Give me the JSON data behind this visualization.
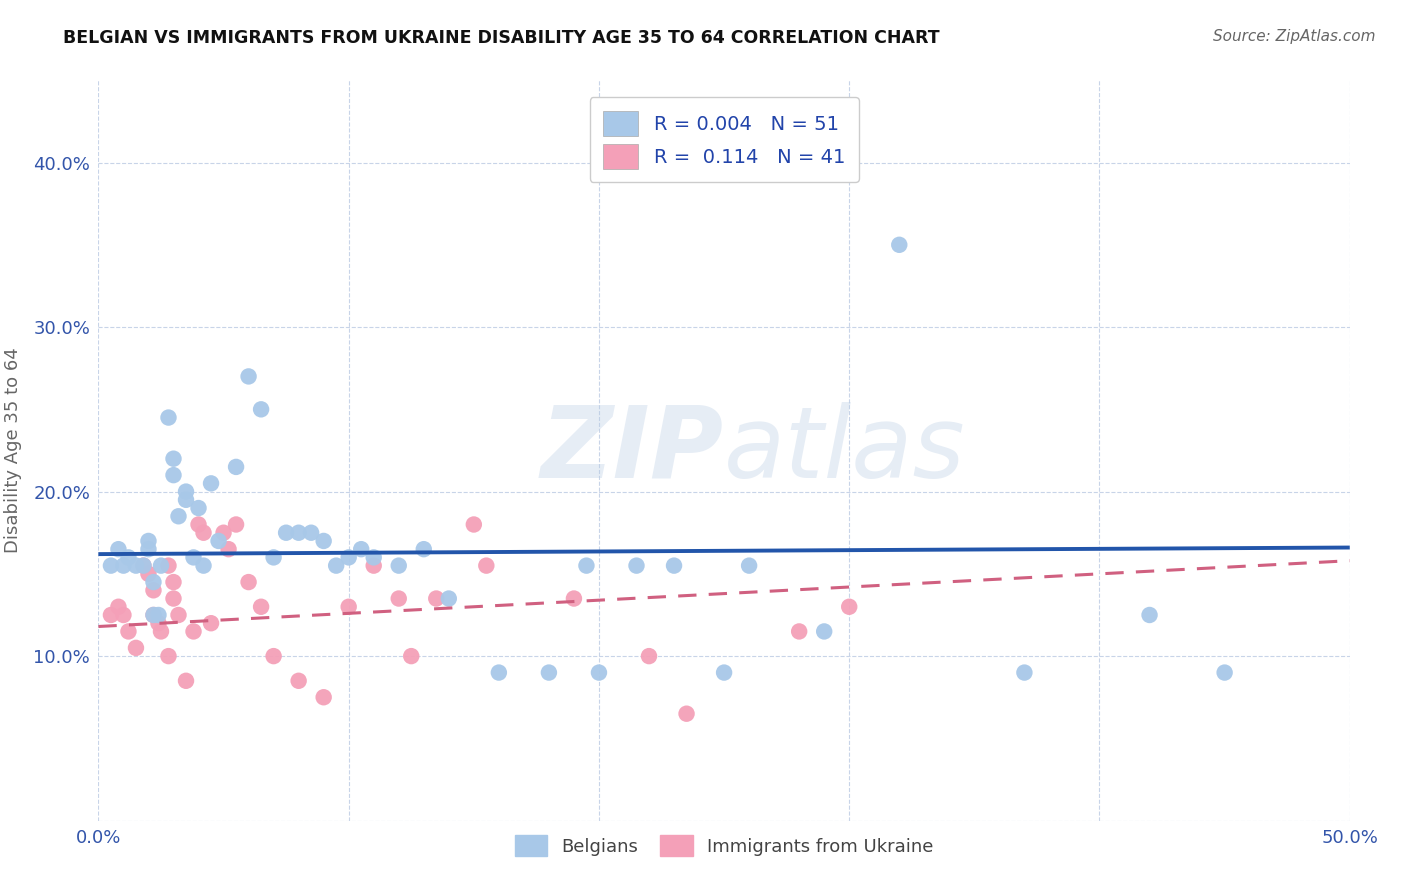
{
  "title": "BELGIAN VS IMMIGRANTS FROM UKRAINE DISABILITY AGE 35 TO 64 CORRELATION CHART",
  "source": "Source: ZipAtlas.com",
  "ylabel": "Disability Age 35 to 64",
  "xlim": [
    0.0,
    0.5
  ],
  "ylim": [
    0.0,
    0.45
  ],
  "watermark_part1": "ZIP",
  "watermark_part2": "atlas",
  "belgian_R": "0.004",
  "belgian_N": "51",
  "ukraine_R": "0.114",
  "ukraine_N": "41",
  "belgian_color": "#a8c8e8",
  "ukraine_color": "#f4a0b8",
  "belgian_line_color": "#2255aa",
  "ukraine_line_color": "#d06080",
  "background_color": "#ffffff",
  "grid_color": "#c8d4e8",
  "belgians_x": [
    0.005,
    0.008,
    0.01,
    0.012,
    0.015,
    0.018,
    0.02,
    0.02,
    0.022,
    0.022,
    0.024,
    0.025,
    0.028,
    0.03,
    0.03,
    0.032,
    0.035,
    0.035,
    0.038,
    0.04,
    0.042,
    0.045,
    0.048,
    0.055,
    0.06,
    0.065,
    0.07,
    0.075,
    0.08,
    0.085,
    0.09,
    0.095,
    0.1,
    0.105,
    0.11,
    0.12,
    0.13,
    0.14,
    0.16,
    0.18,
    0.195,
    0.2,
    0.215,
    0.23,
    0.25,
    0.26,
    0.29,
    0.32,
    0.37,
    0.42,
    0.45
  ],
  "belgians_y": [
    0.155,
    0.165,
    0.155,
    0.16,
    0.155,
    0.155,
    0.17,
    0.165,
    0.145,
    0.125,
    0.125,
    0.155,
    0.245,
    0.22,
    0.21,
    0.185,
    0.2,
    0.195,
    0.16,
    0.19,
    0.155,
    0.205,
    0.17,
    0.215,
    0.27,
    0.25,
    0.16,
    0.175,
    0.175,
    0.175,
    0.17,
    0.155,
    0.16,
    0.165,
    0.16,
    0.155,
    0.165,
    0.135,
    0.09,
    0.09,
    0.155,
    0.09,
    0.155,
    0.155,
    0.09,
    0.155,
    0.115,
    0.35,
    0.09,
    0.125,
    0.09
  ],
  "ukraine_x": [
    0.005,
    0.008,
    0.01,
    0.012,
    0.015,
    0.018,
    0.02,
    0.022,
    0.022,
    0.024,
    0.025,
    0.028,
    0.028,
    0.03,
    0.03,
    0.032,
    0.035,
    0.038,
    0.04,
    0.042,
    0.045,
    0.05,
    0.052,
    0.055,
    0.06,
    0.065,
    0.07,
    0.08,
    0.09,
    0.1,
    0.11,
    0.12,
    0.125,
    0.135,
    0.15,
    0.155,
    0.19,
    0.22,
    0.235,
    0.28,
    0.3
  ],
  "ukraine_y": [
    0.125,
    0.13,
    0.125,
    0.115,
    0.105,
    0.155,
    0.15,
    0.14,
    0.125,
    0.12,
    0.115,
    0.155,
    0.1,
    0.145,
    0.135,
    0.125,
    0.085,
    0.115,
    0.18,
    0.175,
    0.12,
    0.175,
    0.165,
    0.18,
    0.145,
    0.13,
    0.1,
    0.085,
    0.075,
    0.13,
    0.155,
    0.135,
    0.1,
    0.135,
    0.18,
    0.155,
    0.135,
    0.1,
    0.065,
    0.115,
    0.13
  ],
  "belgian_line_x": [
    0.0,
    0.5
  ],
  "belgian_line_y": [
    0.162,
    0.166
  ],
  "ukraine_line_x": [
    0.0,
    0.5
  ],
  "ukraine_line_y": [
    0.118,
    0.158
  ]
}
